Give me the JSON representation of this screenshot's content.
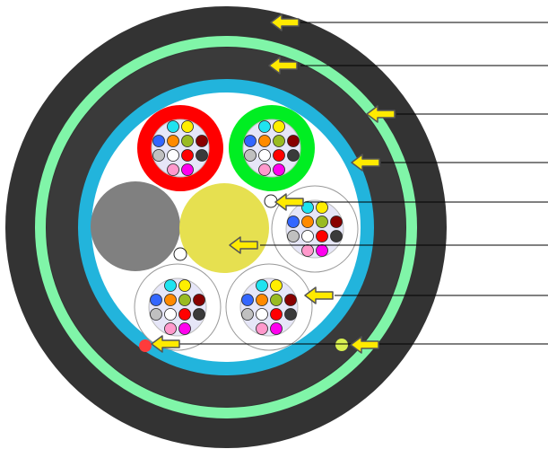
{
  "colors": {
    "outer_jacket": "#333333",
    "armor_ring": "#80f5a8",
    "inner_jacket": "#3a3a3a",
    "water_blocking_tape": "#22b4dc",
    "core_fill": "#ffffff",
    "central_strength_member": "#e6e050",
    "filler_rod": "#808080",
    "tube_red": "#ff0000",
    "tube_green": "#00ee22",
    "tube_inner": "#e6e6f8",
    "ripcord_red": "#ff3b3b",
    "ripcord_yellow": "#d8f050",
    "arrow_fill": "#ffea00",
    "arrow_outline": "#555555",
    "leader_line": "#000000"
  },
  "fiber_colors": [
    "#1fe3f0",
    "#ffee00",
    "#3366ff",
    "#ff8a00",
    "#99bb22",
    "#880000",
    "#c0c0c0",
    "#ffffff",
    "#ff0000",
    "#3a3a3a",
    "#ff99cc",
    "#ff00ee"
  ],
  "callouts": [
    {
      "name": "outer-jacket-callout"
    },
    {
      "name": "armor-callout"
    },
    {
      "name": "inner-jacket-callout"
    },
    {
      "name": "water-blocking-tape-callout"
    },
    {
      "name": "water-blocking-yarn-callout"
    },
    {
      "name": "central-strength-member-callout"
    },
    {
      "name": "loose-tube-callout"
    },
    {
      "name": "ripcord-callout"
    }
  ]
}
